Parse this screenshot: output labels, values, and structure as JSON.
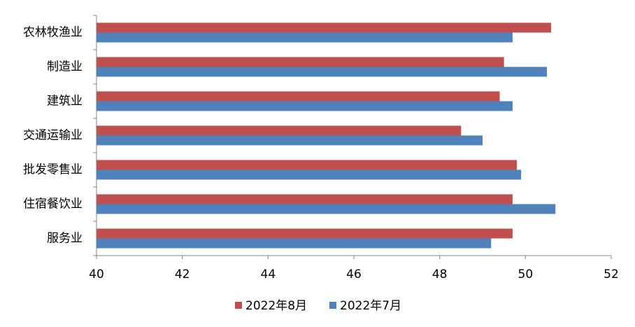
{
  "chart_data": {
    "type": "hbar",
    "categories": [
      "农林牧渔业",
      "制造业",
      "建筑业",
      "交通运输业",
      "批发零售业",
      "住宿餐饮业",
      "服务业"
    ],
    "series": [
      {
        "name": "2022年8月",
        "color": "#c0504d",
        "values": [
          50.6,
          49.5,
          49.4,
          48.5,
          49.8,
          49.7,
          49.7
        ]
      },
      {
        "name": "2022年7月",
        "color": "#4f81bd",
        "values": [
          49.7,
          50.5,
          49.7,
          49.0,
          49.9,
          50.7,
          49.2
        ]
      }
    ],
    "xlim": [
      40,
      52
    ],
    "xticks": [
      40,
      42,
      44,
      46,
      48,
      50,
      52
    ],
    "legend": "bottom"
  }
}
